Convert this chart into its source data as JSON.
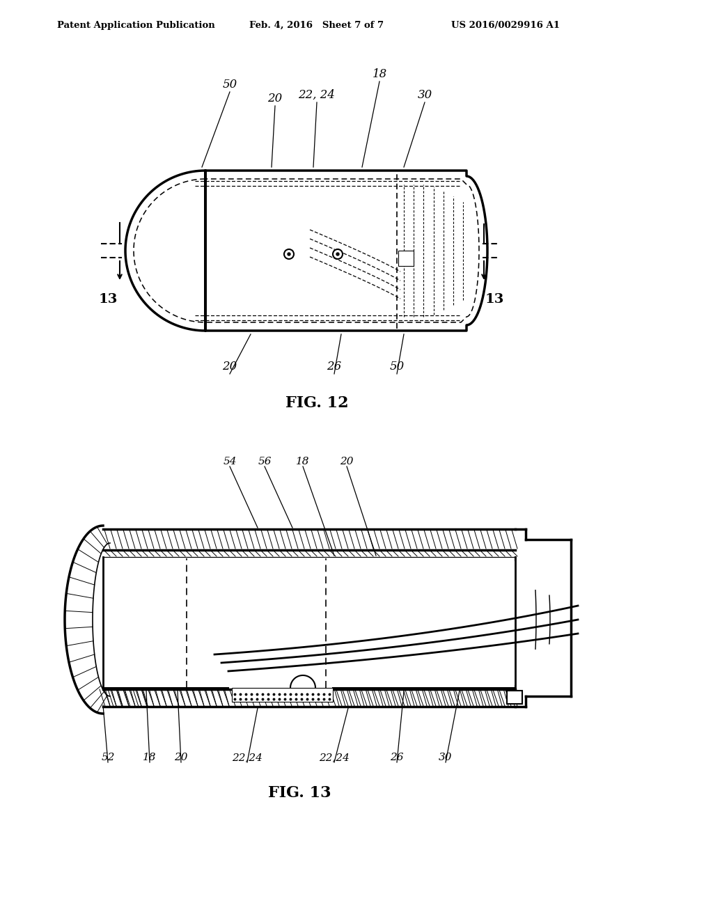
{
  "background_color": "#ffffff",
  "header_left": "Patent Application Publication",
  "header_mid": "Feb. 4, 2016   Sheet 7 of 7",
  "header_right": "US 2016/0029916 A1",
  "fig12_label": "FIG. 12",
  "fig13_label": "FIG. 13",
  "lc": "#000000",
  "lw": 1.5
}
